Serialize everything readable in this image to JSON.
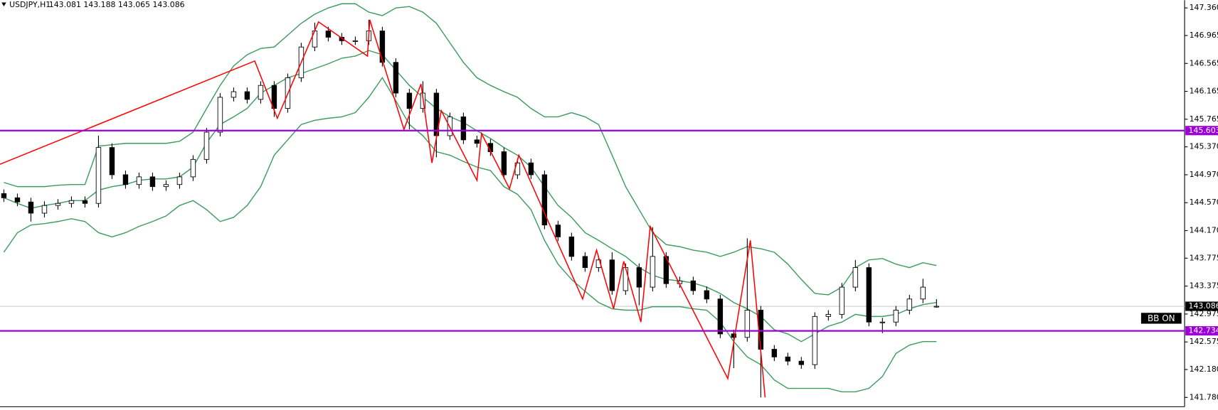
{
  "chart_data": {
    "type": "candlestick",
    "title": "USDJPY,H1",
    "subtitle": "143.081 143.188 143.065 143.086",
    "annotation": "BB ON",
    "up_color": "#ffffff",
    "down_color": "#000000",
    "open": [
      144.7,
      144.64,
      144.58,
      144.42,
      144.53,
      144.56,
      144.6,
      144.56,
      145.36,
      144.97,
      144.83,
      144.94,
      144.8,
      144.83,
      144.94,
      145.19,
      145.58,
      146.08,
      146.16,
      146.05,
      146.25,
      145.92,
      146.36,
      146.8,
      147.03,
      146.94,
      146.89,
      146.89,
      147.03,
      146.58,
      146.14,
      145.92,
      146.14,
      145.53,
      145.8,
      145.47,
      145.42,
      145.3,
      144.97,
      145.14,
      144.97,
      144.25,
      144.08,
      143.8,
      143.64,
      143.75,
      143.31,
      143.64,
      143.36,
      143.8,
      143.41,
      143.45,
      143.31,
      143.19,
      142.69,
      142.64,
      143.03,
      142.47,
      142.36,
      142.3,
      142.25,
      142.94,
      142.97,
      143.36,
      143.64,
      142.86,
      142.86,
      143.03,
      143.19,
      143.081
    ],
    "high": [
      144.76,
      144.7,
      144.64,
      144.59,
      144.62,
      144.66,
      144.66,
      145.53,
      145.42,
      145.03,
      145.0,
      145.0,
      144.89,
      145.0,
      145.25,
      145.64,
      146.14,
      146.22,
      146.22,
      146.31,
      146.31,
      146.42,
      146.86,
      147.15,
      147.09,
      147.0,
      146.95,
      147.19,
      147.09,
      146.64,
      146.2,
      146.31,
      146.2,
      145.86,
      145.86,
      145.53,
      145.48,
      145.36,
      145.2,
      145.2,
      145.03,
      144.31,
      144.14,
      143.86,
      143.81,
      143.86,
      143.7,
      143.7,
      144.22,
      143.86,
      143.51,
      143.51,
      143.37,
      143.25,
      142.75,
      144.06,
      143.09,
      142.53,
      142.42,
      142.36,
      143.0,
      143.03,
      143.42,
      143.75,
      143.7,
      142.92,
      143.09,
      143.25,
      143.48,
      143.188
    ],
    "low": [
      144.58,
      144.52,
      144.3,
      144.36,
      144.47,
      144.5,
      144.5,
      144.5,
      144.91,
      144.77,
      144.77,
      144.74,
      144.74,
      144.77,
      144.88,
      145.13,
      145.52,
      146.02,
      145.99,
      145.99,
      145.8,
      145.86,
      146.3,
      146.74,
      146.88,
      146.83,
      146.83,
      146.83,
      146.52,
      146.08,
      145.62,
      145.86,
      145.22,
      145.47,
      145.41,
      145.36,
      145.24,
      144.91,
      144.91,
      144.91,
      144.19,
      144.02,
      143.74,
      143.58,
      143.58,
      143.25,
      143.25,
      143.1,
      143.3,
      143.35,
      143.35,
      143.25,
      143.13,
      142.63,
      142.2,
      142.58,
      141.78,
      142.3,
      142.24,
      142.19,
      142.19,
      142.88,
      142.91,
      143.3,
      142.8,
      142.7,
      142.8,
      142.97,
      143.13,
      143.065
    ],
    "close": [
      144.64,
      144.58,
      144.42,
      144.53,
      144.56,
      144.6,
      144.56,
      145.36,
      144.97,
      144.83,
      144.94,
      144.8,
      144.83,
      144.94,
      145.19,
      145.58,
      146.08,
      146.16,
      146.05,
      146.25,
      145.92,
      146.36,
      146.8,
      147.03,
      146.94,
      146.89,
      146.89,
      147.03,
      146.58,
      146.14,
      145.92,
      146.14,
      145.53,
      145.8,
      145.47,
      145.42,
      145.3,
      144.97,
      145.14,
      144.97,
      144.25,
      144.08,
      143.8,
      143.64,
      143.75,
      143.31,
      143.64,
      143.36,
      143.8,
      143.41,
      143.45,
      143.31,
      143.19,
      142.69,
      142.64,
      143.03,
      142.47,
      142.36,
      142.3,
      142.25,
      142.94,
      142.97,
      143.36,
      143.64,
      142.86,
      142.86,
      143.03,
      143.19,
      143.36,
      143.086
    ],
    "bands": [
      {
        "color": "#3c9b5f",
        "values": [
          144.86,
          144.8,
          144.8,
          144.8,
          144.82,
          144.83,
          144.83,
          145.38,
          145.4,
          145.42,
          145.42,
          145.42,
          145.42,
          145.45,
          145.58,
          145.92,
          146.25,
          146.53,
          146.69,
          146.78,
          146.8,
          146.97,
          147.14,
          147.27,
          147.36,
          147.42,
          147.42,
          147.3,
          147.25,
          147.36,
          147.38,
          147.3,
          147.14,
          146.86,
          146.58,
          146.36,
          146.25,
          146.16,
          146.08,
          145.92,
          145.8,
          145.8,
          145.86,
          145.8,
          145.69,
          145.25,
          144.8,
          144.47,
          144.14,
          143.97,
          143.94,
          143.89,
          143.86,
          143.8,
          143.86,
          143.94,
          143.91,
          143.86,
          143.69,
          143.47,
          143.27,
          143.25,
          143.36,
          143.64,
          143.75,
          143.77,
          143.69,
          143.64,
          143.71,
          143.67
        ]
      },
      {
        "color": "#3c9b5f",
        "values": [
          144.64,
          144.56,
          144.49,
          144.53,
          144.56,
          144.6,
          144.6,
          144.75,
          144.8,
          144.83,
          144.89,
          144.91,
          144.91,
          144.94,
          145.08,
          145.43,
          145.69,
          145.8,
          145.92,
          146.14,
          146.25,
          146.36,
          146.42,
          146.49,
          146.56,
          146.64,
          146.67,
          146.75,
          146.69,
          146.47,
          146.25,
          146.08,
          145.92,
          145.8,
          145.72,
          145.6,
          145.49,
          145.36,
          145.25,
          145.08,
          144.8,
          144.53,
          144.36,
          144.14,
          144.03,
          143.91,
          143.8,
          143.64,
          143.53,
          143.47,
          143.45,
          143.42,
          143.36,
          143.27,
          143.14,
          143.05,
          142.94,
          142.75,
          142.69,
          142.58,
          142.69,
          142.8,
          142.86,
          142.97,
          142.94,
          142.94,
          142.97,
          143.05,
          143.11,
          143.14
        ]
      },
      {
        "color": "#3c9b5f",
        "values": [
          143.86,
          144.14,
          144.25,
          144.27,
          144.3,
          144.34,
          144.3,
          144.14,
          144.08,
          144.14,
          144.23,
          144.3,
          144.38,
          144.53,
          144.6,
          144.47,
          144.3,
          144.36,
          144.53,
          144.8,
          145.25,
          145.47,
          145.69,
          145.75,
          145.78,
          145.8,
          145.86,
          146.08,
          146.36,
          146.03,
          145.69,
          145.53,
          145.3,
          145.25,
          145.16,
          145.08,
          145.03,
          144.8,
          144.69,
          144.47,
          144.03,
          143.69,
          143.47,
          143.3,
          143.14,
          143.05,
          143.03,
          143.03,
          143.08,
          143.08,
          143.08,
          143.05,
          143.03,
          142.86,
          142.58,
          142.36,
          142.25,
          142.03,
          141.91,
          141.91,
          141.91,
          141.91,
          141.86,
          141.86,
          141.91,
          142.08,
          142.41,
          142.53,
          142.58,
          142.58
        ]
      }
    ],
    "zigzag": {
      "color": "#ff0000",
      "x": [
        -0.29,
        18.56,
        20.23,
        23.28,
        26.9,
        27.07,
        29.6,
        30.86,
        31.67,
        32.36,
        35.0,
        35.34,
        37.41,
        38.1,
        42.82,
        43.85,
        45.11,
        45.86,
        47.13,
        47.82,
        53.56,
        55.23,
        56.32
      ],
      "values": [
        145.12,
        146.6,
        145.78,
        147.16,
        146.67,
        147.19,
        145.62,
        146.27,
        145.14,
        145.89,
        144.89,
        145.56,
        144.77,
        145.25,
        143.19,
        143.89,
        143.05,
        143.73,
        142.86,
        144.23,
        142.05,
        144.03,
        141.78
      ]
    },
    "levels": [
      {
        "value": 145.603,
        "color": "#9b00d6"
      },
      {
        "value": 142.734,
        "color": "#9b00d6"
      }
    ],
    "ylim": [
      141.647,
      147.471
    ],
    "yticks": [
      {
        "value": 147.36,
        "label": "147.360"
      },
      146.965,
      146.565,
      146.165,
      145.765,
      {
        "value": 145.37,
        "label": "145.370"
      },
      {
        "value": 144.97,
        "label": "144.970"
      },
      {
        "value": 144.57,
        "label": "144.570"
      },
      {
        "value": 144.17,
        "label": "144.170"
      },
      143.775,
      143.375,
      142.975,
      142.575,
      {
        "value": 142.18,
        "label": "142.180"
      },
      {
        "value": 141.78,
        "label": "141.780"
      }
    ]
  }
}
